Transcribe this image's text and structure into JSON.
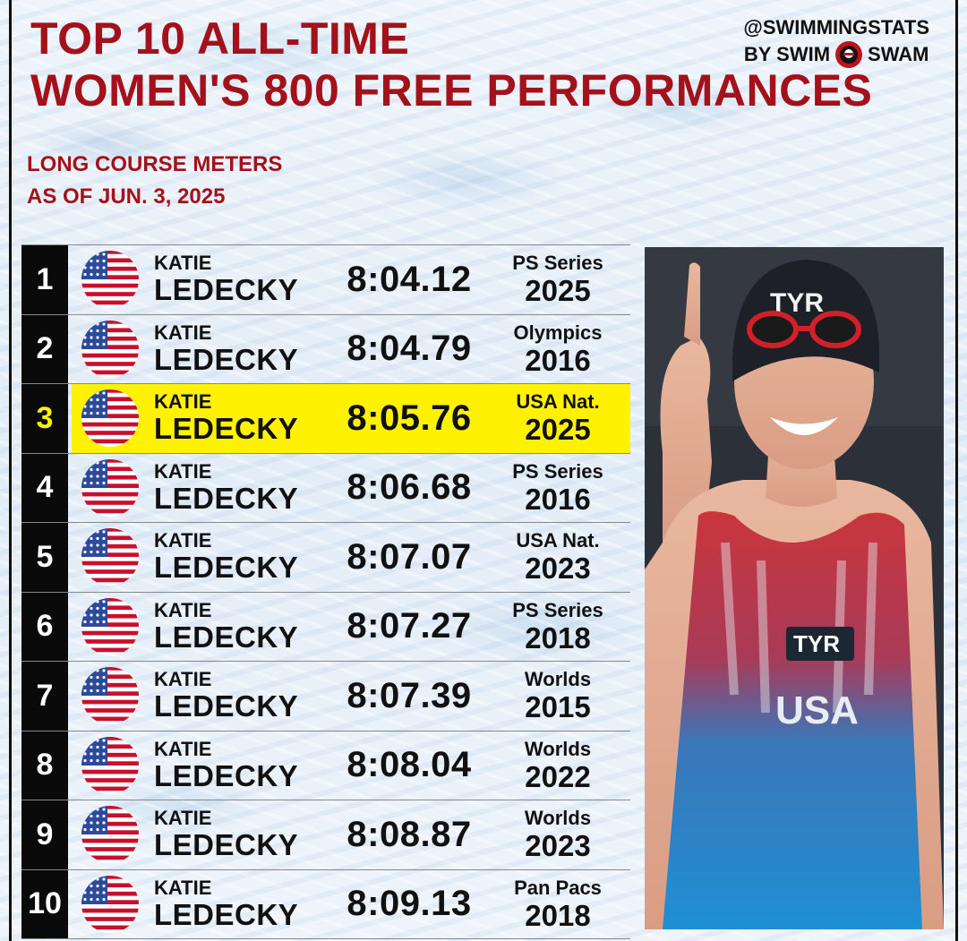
{
  "header": {
    "title_line1": "TOP 10 ALL-TIME",
    "title_line2": "WOMEN'S 800 FREE PERFORMANCES",
    "subtitle_line1": "LONG COURSE METERS",
    "subtitle_line2": "AS OF JUN. 3, 2025"
  },
  "brand": {
    "handle": "@SWIMMINGSTATS",
    "by_left": "BY SWIM",
    "by_right": "SWAM"
  },
  "rows": [
    {
      "rank": "1",
      "first": "KATIE",
      "last": "LEDECKY",
      "time": "8:04.12",
      "meet": "PS Series",
      "year": "2025"
    },
    {
      "rank": "2",
      "first": "KATIE",
      "last": "LEDECKY",
      "time": "8:04.79",
      "meet": "Olympics",
      "year": "2016"
    },
    {
      "rank": "3",
      "first": "KATIE",
      "last": "LEDECKY",
      "time": "8:05.76",
      "meet": "USA Nat.",
      "year": "2025"
    },
    {
      "rank": "4",
      "first": "KATIE",
      "last": "LEDECKY",
      "time": "8:06.68",
      "meet": "PS Series",
      "year": "2016"
    },
    {
      "rank": "5",
      "first": "KATIE",
      "last": "LEDECKY",
      "time": "8:07.07",
      "meet": "USA Nat.",
      "year": "2023"
    },
    {
      "rank": "6",
      "first": "KATIE",
      "last": "LEDECKY",
      "time": "8:07.27",
      "meet": "PS Series",
      "year": "2018"
    },
    {
      "rank": "7",
      "first": "KATIE",
      "last": "LEDECKY",
      "time": "8:07.39",
      "meet": "Worlds",
      "year": "2015"
    },
    {
      "rank": "8",
      "first": "KATIE",
      "last": "LEDECKY",
      "time": "8:08.04",
      "meet": "Worlds",
      "year": "2022"
    },
    {
      "rank": "9",
      "first": "KATIE",
      "last": "LEDECKY",
      "time": "8:08.87",
      "meet": "Worlds",
      "year": "2023"
    },
    {
      "rank": "10",
      "first": "KATIE",
      "last": "LEDECKY",
      "time": "8:09.13",
      "meet": "Pan Pacs",
      "year": "2018"
    }
  ],
  "highlight_rank": "3",
  "photo": {
    "cap_text": "TYR",
    "suit_brand": "TYR",
    "suit_text": "USA"
  },
  "colors": {
    "title_red": "#a3121b",
    "highlight": "#fff200",
    "rank_bg": "#0a0a0a",
    "flag_red": "#c8102e",
    "flag_blue": "#2c4a9a"
  },
  "icons": {
    "flag": "usa-flag-icon",
    "brand_logo": "swimswam-logo-icon"
  }
}
